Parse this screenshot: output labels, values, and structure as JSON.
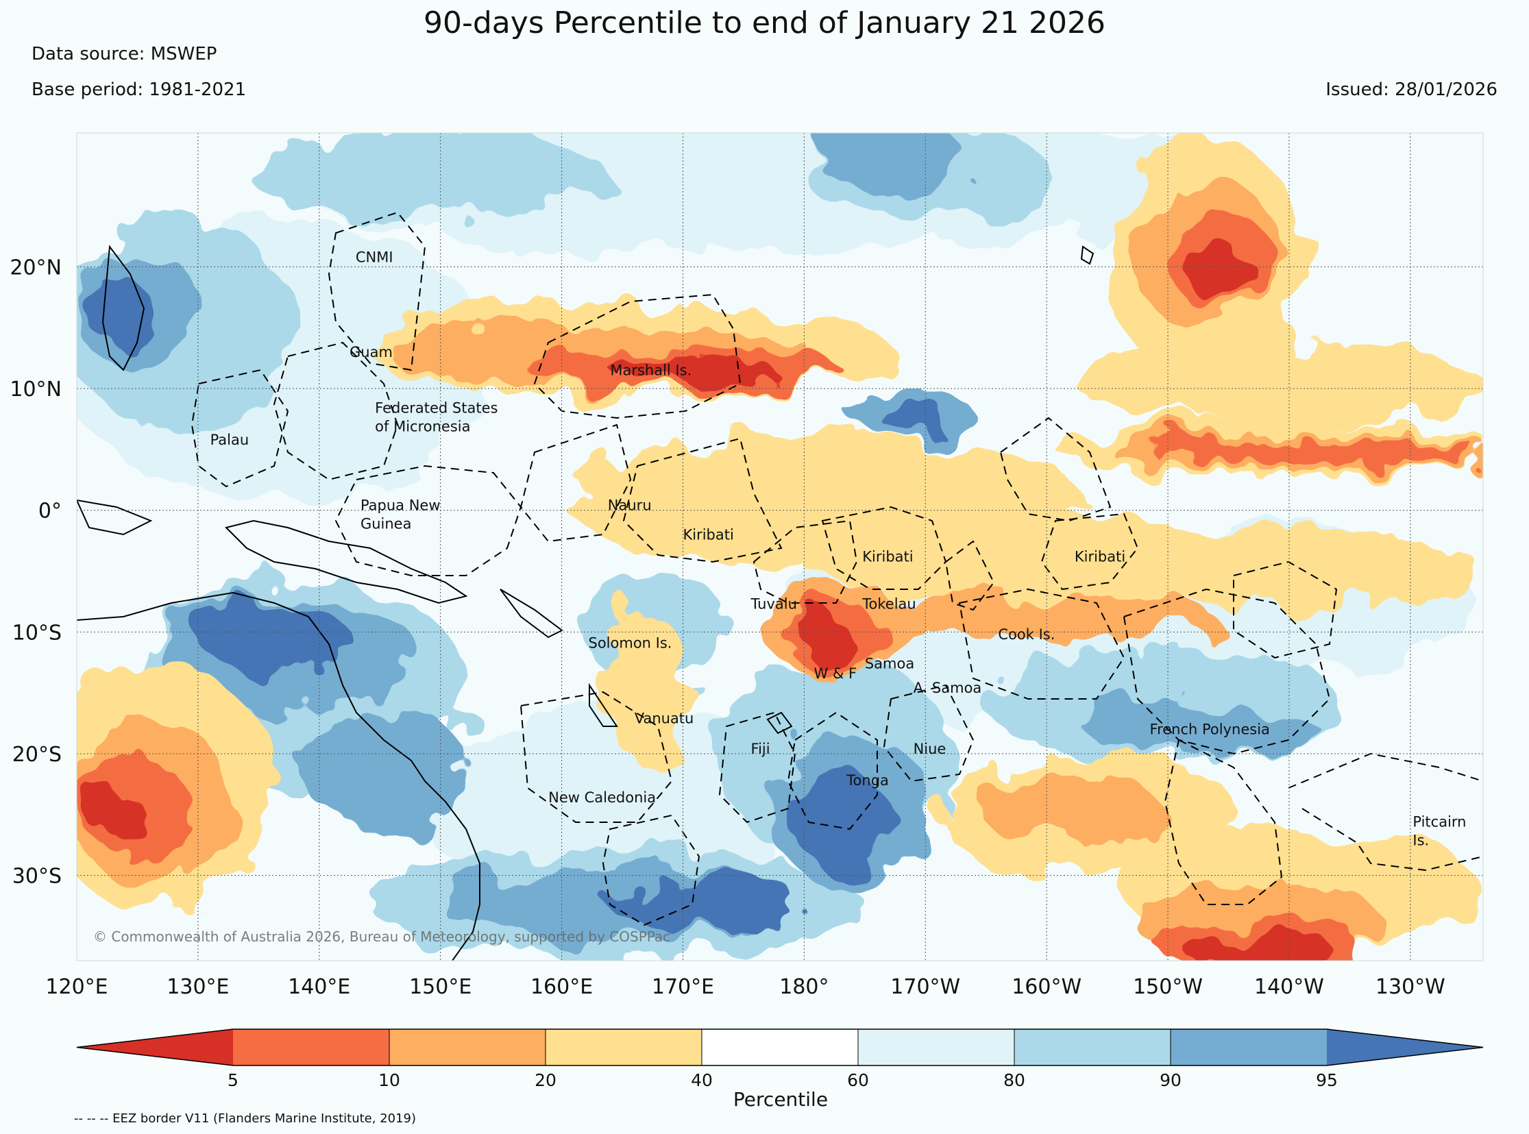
{
  "header": {
    "title": "90-days Percentile to end of January 21 2026",
    "data_source": "Data source: MSWEP",
    "base_period": "Base period: 1981-2021",
    "issued": "Issued: 28/01/2026"
  },
  "map": {
    "lon_range_degE": [
      120,
      236
    ],
    "lat_range": [
      -37,
      31
    ],
    "lat_ticks": [
      {
        "lat": 20,
        "label": "20°N"
      },
      {
        "lat": 10,
        "label": "10°N"
      },
      {
        "lat": 0,
        "label": "0°"
      },
      {
        "lat": -10,
        "label": "10°S"
      },
      {
        "lat": -20,
        "label": "20°S"
      },
      {
        "lat": -30,
        "label": "30°S"
      }
    ],
    "lon_ticks": [
      {
        "lon": 120,
        "label": "120°E"
      },
      {
        "lon": 130,
        "label": "130°E"
      },
      {
        "lon": 140,
        "label": "140°E"
      },
      {
        "lon": 150,
        "label": "150°E"
      },
      {
        "lon": 160,
        "label": "160°E"
      },
      {
        "lon": 170,
        "label": "170°E"
      },
      {
        "lon": 180,
        "label": "180°"
      },
      {
        "lon": 190,
        "label": "170°W"
      },
      {
        "lon": 200,
        "label": "160°W"
      },
      {
        "lon": 210,
        "label": "150°W"
      },
      {
        "lon": 220,
        "label": "140°W"
      },
      {
        "lon": 230,
        "label": "130°W"
      }
    ],
    "places": [
      {
        "id": "cnmi",
        "lines": [
          "CNMI"
        ],
        "lon": 143.0,
        "lat": 20.4
      },
      {
        "id": "guam",
        "lines": [
          "Guam"
        ],
        "lon": 142.5,
        "lat": 12.6
      },
      {
        "id": "marshall",
        "lines": [
          "Marshall Is."
        ],
        "lon": 164.0,
        "lat": 11.1
      },
      {
        "id": "fsm",
        "lines": [
          "Federated States",
          "of Micronesia"
        ],
        "lon": 144.6,
        "lat": 8.0
      },
      {
        "id": "palau",
        "lines": [
          "Palau"
        ],
        "lon": 131.0,
        "lat": 5.4
      },
      {
        "id": "png",
        "lines": [
          "Papua New",
          "Guinea"
        ],
        "lon": 143.4,
        "lat": 0.0
      },
      {
        "id": "nauru",
        "lines": [
          "Nauru"
        ],
        "lon": 163.8,
        "lat": 0.0
      },
      {
        "id": "kiribati-w",
        "lines": [
          "Kiribati"
        ],
        "lon": 170.0,
        "lat": -2.4
      },
      {
        "id": "kiribati-c",
        "lines": [
          "Kiribati"
        ],
        "lon": 184.8,
        "lat": -4.2
      },
      {
        "id": "kiribati-e",
        "lines": [
          "Kiribati"
        ],
        "lon": 202.3,
        "lat": -4.2
      },
      {
        "id": "tuvalu",
        "lines": [
          "Tuvalu"
        ],
        "lon": 175.6,
        "lat": -8.1
      },
      {
        "id": "tokelau",
        "lines": [
          "Tokelau"
        ],
        "lon": 184.8,
        "lat": -8.1
      },
      {
        "id": "solomon",
        "lines": [
          "Solomon Is."
        ],
        "lon": 162.2,
        "lat": -11.3
      },
      {
        "id": "cook",
        "lines": [
          "Cook Is."
        ],
        "lon": 196.0,
        "lat": -10.6
      },
      {
        "id": "samoa",
        "lines": [
          "Samoa"
        ],
        "lon": 185.0,
        "lat": -13.0
      },
      {
        "id": "wf",
        "lines": [
          "W & F"
        ],
        "lon": 180.8,
        "lat": -13.8
      },
      {
        "id": "asamoa",
        "lines": [
          "A. Samoa"
        ],
        "lon": 189.0,
        "lat": -15.0
      },
      {
        "id": "vanuatu",
        "lines": [
          "Vanuatu"
        ],
        "lon": 166.0,
        "lat": -17.5
      },
      {
        "id": "fpoly",
        "lines": [
          "French Polynesia"
        ],
        "lon": 208.5,
        "lat": -18.4
      },
      {
        "id": "fiji",
        "lines": [
          "Fiji"
        ],
        "lon": 175.6,
        "lat": -20.0
      },
      {
        "id": "niue",
        "lines": [
          "Niue"
        ],
        "lon": 189.0,
        "lat": -20.0
      },
      {
        "id": "tonga",
        "lines": [
          "Tonga"
        ],
        "lon": 183.5,
        "lat": -22.6
      },
      {
        "id": "newcal",
        "lines": [
          "New Caledonia"
        ],
        "lon": 158.9,
        "lat": -24.0
      },
      {
        "id": "pitcairn",
        "lines": [
          "Pitcairn",
          "Is."
        ],
        "lon": 230.2,
        "lat": -26.0
      }
    ],
    "copyright": "© Commonwealth of Australia 2026, Bureau of Meteorology, supported by COSPPac"
  },
  "colorbar": {
    "label": "Percentile",
    "ticks": [
      "5",
      "10",
      "20",
      "40",
      "60",
      "80",
      "90",
      "95"
    ],
    "colors": [
      "#d73027",
      "#f46d43",
      "#fdae61",
      "#fee090",
      "#ffffff",
      "#e0f3f8",
      "#abd9e9",
      "#74add1",
      "#4575b4"
    ]
  },
  "eez_note": "-- -- -- EEZ border V11 (Flanders Marine Institute, 2019)"
}
